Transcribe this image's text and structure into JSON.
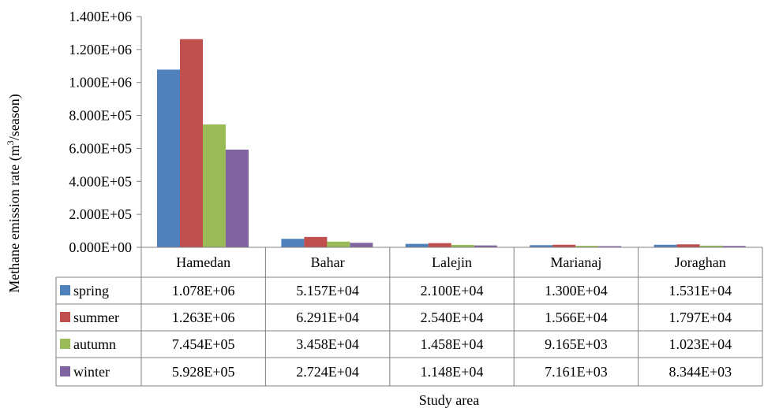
{
  "chart_data": {
    "type": "bar",
    "title": "",
    "xlabel": "Study area",
    "ylabel_main": "Methane emission rate (m",
    "ylabel_sup": "3",
    "ylabel_end": "/season)",
    "ylim": [
      0,
      1400000
    ],
    "yticks": [
      0,
      200000,
      400000,
      600000,
      800000,
      1000000,
      1200000,
      1400000
    ],
    "ytick_labels": [
      "0.000E+00",
      "2.000E+05",
      "4.000E+05",
      "6.000E+05",
      "8.000E+05",
      "1.000E+06",
      "1.200E+06",
      "1.400E+06"
    ],
    "grid": false,
    "legend": "data-table",
    "categories": [
      "Hamedan",
      "Bahar",
      "Lalejin",
      "Marianaj",
      "Joraghan"
    ],
    "series": [
      {
        "name": "spring",
        "color": "#4F81BD",
        "values": [
          1078000,
          51570,
          21000,
          13000,
          15310
        ],
        "labels": [
          "1.078E+06",
          "5.157E+04",
          "2.100E+04",
          "1.300E+04",
          "1.531E+04"
        ]
      },
      {
        "name": "summer",
        "color": "#C0504D",
        "values": [
          1263000,
          62910,
          25400,
          15660,
          17970
        ],
        "labels": [
          "1.263E+06",
          "6.291E+04",
          "2.540E+04",
          "1.566E+04",
          "1.797E+04"
        ]
      },
      {
        "name": "autumn",
        "color": "#9BBB59",
        "values": [
          745400,
          34580,
          14580,
          9165,
          10230
        ],
        "labels": [
          "7.454E+05",
          "3.458E+04",
          "1.458E+04",
          "9.165E+03",
          "1.023E+04"
        ]
      },
      {
        "name": "winter",
        "color": "#8064A2",
        "values": [
          592800,
          27240,
          11480,
          7161,
          8344
        ],
        "labels": [
          "5.928E+05",
          "2.724E+04",
          "1.148E+04",
          "7.161E+03",
          "8.344E+03"
        ]
      }
    ]
  }
}
